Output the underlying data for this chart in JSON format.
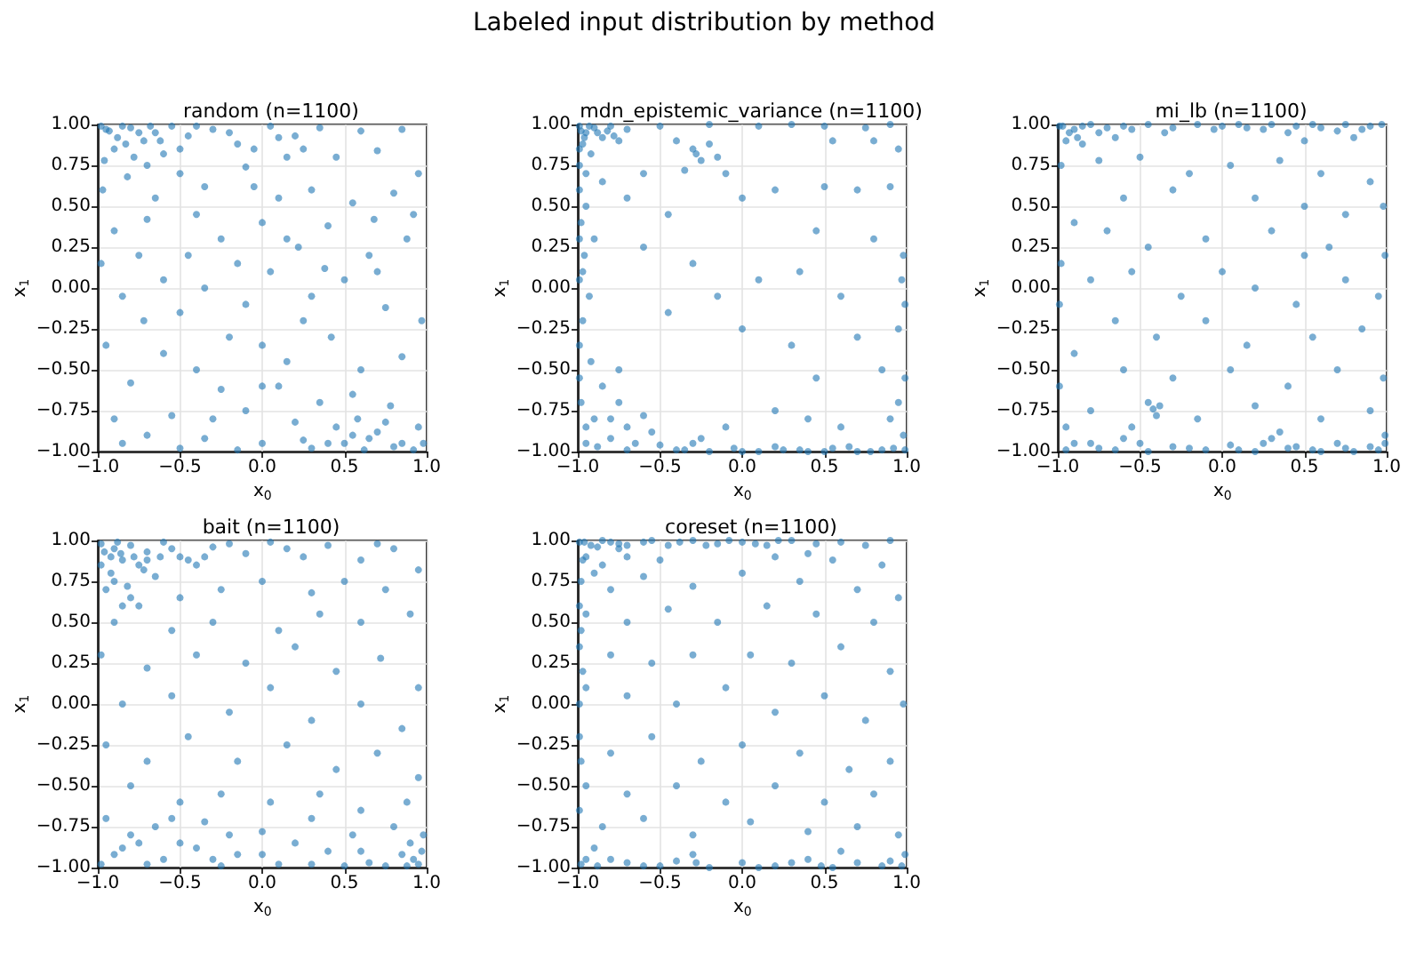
{
  "chart_data": [
    {
      "type": "other",
      "title": "Labeled input distribution by method"
    },
    {
      "type": "scatter",
      "title": "random (n=1100)",
      "xlabel": "x$_{0}$",
      "ylabel": "x$_{1}$",
      "color": "#1f77b4",
      "marker": "circle",
      "grid": true,
      "xlim": [
        -1,
        1
      ],
      "ylim": [
        -1,
        1
      ],
      "xticks": [
        {
          "value": -1,
          "label": "−1.0"
        },
        {
          "value": -0.5,
          "label": "−0.5"
        },
        {
          "value": 0,
          "label": "0.0"
        },
        {
          "value": 0.5,
          "label": "0.5"
        },
        {
          "value": 1,
          "label": "1.0"
        }
      ],
      "yticks": [
        {
          "value": -1,
          "label": "−1.00"
        },
        {
          "value": -0.75,
          "label": "−0.75"
        },
        {
          "value": -0.5,
          "label": "−0.50"
        },
        {
          "value": -0.25,
          "label": "−0.25"
        },
        {
          "value": 0,
          "label": "0.00"
        },
        {
          "value": 0.25,
          "label": "0.25"
        },
        {
          "value": 0.5,
          "label": "0.50"
        },
        {
          "value": 0.75,
          "label": "0.75"
        },
        {
          "value": 1,
          "label": "1.00"
        }
      ],
      "x": [
        -0.95,
        -0.88,
        -0.8,
        -0.72,
        -0.65,
        -0.9,
        -0.78,
        -0.6,
        -0.55,
        -0.45,
        -0.3,
        -0.15,
        0.05,
        0.2,
        0.35,
        0.6,
        0.85,
        0.45,
        0.7,
        0.95,
        -0.97,
        -0.82,
        -0.5,
        -0.35,
        -0.1,
        0.1,
        0.3,
        0.55,
        0.8,
        0.92,
        -0.9,
        -0.7,
        -0.45,
        -0.25,
        0.0,
        0.22,
        0.4,
        0.65,
        0.88,
        -0.6,
        -0.85,
        -0.35,
        -0.1,
        0.05,
        0.3,
        0.5,
        0.75,
        0.97,
        -0.72,
        -0.2,
        -0.95,
        -0.6,
        -0.4,
        0.0,
        0.15,
        0.42,
        0.6,
        0.85,
        -0.8,
        -0.25,
        0.1,
        0.35,
        0.55,
        0.78,
        -0.9,
        -0.55,
        -0.1,
        0.2,
        0.45,
        0.7,
        0.95,
        -0.7,
        -0.35,
        0.0,
        0.3,
        0.5,
        0.62,
        0.8,
        0.92,
        -0.15,
        -0.98,
        -0.5,
        0.15,
        -0.05,
        0.68,
        0.38,
        -0.4,
        0.58,
        0.25,
        -0.65,
        -0.98,
        -0.93,
        -0.85,
        -0.75,
        -0.68,
        -0.62,
        -0.83,
        -0.96,
        -0.7,
        -0.4,
        -0.5,
        -0.2,
        0.25,
        0.1,
        -0.05,
        0.65,
        0.75,
        0.85,
        0.98,
        0.4,
        0.55,
        0.25,
        -0.5,
        -0.85,
        -0.3,
        0.0,
        -0.75,
        0.15,
        0.7,
        -0.15
      ],
      "values": [
        0.97,
        0.92,
        0.98,
        0.9,
        0.95,
        0.85,
        0.8,
        0.82,
        0.99,
        0.93,
        0.97,
        0.88,
        0.99,
        0.93,
        0.98,
        0.96,
        0.97,
        0.8,
        0.84,
        0.7,
        0.6,
        0.68,
        0.7,
        0.62,
        0.74,
        0.55,
        0.6,
        0.52,
        0.58,
        0.45,
        0.35,
        0.42,
        0.2,
        0.3,
        0.4,
        0.25,
        0.38,
        0.2,
        0.3,
        0.05,
        -0.05,
        0.0,
        -0.1,
        0.1,
        -0.05,
        0.05,
        -0.12,
        -0.2,
        -0.2,
        -0.3,
        -0.35,
        -0.4,
        -0.5,
        -0.35,
        -0.45,
        -0.3,
        -0.5,
        -0.42,
        -0.58,
        -0.62,
        -0.6,
        -0.7,
        -0.65,
        -0.72,
        -0.8,
        -0.78,
        -0.75,
        -0.82,
        -0.85,
        -0.88,
        -0.85,
        -0.9,
        -0.92,
        -0.95,
        -0.98,
        -0.95,
        -0.99,
        -0.97,
        -0.99,
        -0.99,
        0.15,
        -0.15,
        0.8,
        0.62,
        0.42,
        0.12,
        0.45,
        -0.8,
        -0.2,
        0.55,
        0.99,
        0.96,
        0.99,
        0.95,
        0.99,
        0.9,
        0.88,
        0.78,
        0.75,
        0.99,
        0.85,
        0.95,
        0.85,
        0.92,
        0.85,
        -0.92,
        -0.82,
        -0.95,
        -0.95,
        -0.95,
        -0.9,
        -0.93,
        -0.98,
        -0.95,
        -0.8,
        -0.6,
        0.2,
        0.3,
        0.1,
        0.15
      ]
    },
    {
      "type": "scatter",
      "title": "mdn_epistemic_variance (n=1100)",
      "xlabel": "x$_{0}$",
      "ylabel": "x$_{1}$",
      "color": "#1f77b4",
      "marker": "circle",
      "grid": true,
      "xlim": [
        -1,
        1
      ],
      "ylim": [
        -1,
        1
      ],
      "xticks": [
        {
          "value": -1,
          "label": "−1.0"
        },
        {
          "value": -0.5,
          "label": "−0.5"
        },
        {
          "value": 0,
          "label": "0.0"
        },
        {
          "value": 0.5,
          "label": "0.5"
        },
        {
          "value": 1,
          "label": "1.0"
        }
      ],
      "yticks": [
        {
          "value": -1,
          "label": "−1.00"
        },
        {
          "value": -0.75,
          "label": "−0.75"
        },
        {
          "value": -0.5,
          "label": "−0.50"
        },
        {
          "value": -0.25,
          "label": "−0.25"
        },
        {
          "value": 0,
          "label": "0.00"
        },
        {
          "value": 0.25,
          "label": "0.25"
        },
        {
          "value": 0.5,
          "label": "0.50"
        },
        {
          "value": 0.75,
          "label": "0.75"
        },
        {
          "value": 1,
          "label": "1.00"
        }
      ],
      "x": [
        -0.99,
        -0.95,
        -0.9,
        -0.85,
        -0.97,
        -0.8,
        -0.75,
        -0.92,
        -0.99,
        -0.7,
        -0.99,
        -0.95,
        -0.98,
        -0.9,
        -0.96,
        -0.99,
        -0.93,
        -0.97,
        -0.99,
        -0.92,
        -0.3,
        -0.25,
        -0.2,
        -0.35,
        -0.15,
        -0.4,
        -0.1,
        -0.85,
        -0.7,
        -0.6,
        -0.5,
        -0.2,
        0.1,
        0.3,
        0.5,
        0.75,
        0.9,
        0.55,
        0.8,
        0.95,
        0.5,
        0.7,
        0.9,
        0.2,
        0.0,
        -0.45,
        0.45,
        0.8,
        0.98,
        -0.6,
        -0.3,
        0.1,
        0.35,
        0.6,
        -0.15,
        -0.45,
        0.0,
        0.3,
        0.7,
        0.95,
        -0.85,
        -0.75,
        -0.9,
        -0.7,
        -0.8,
        -0.6,
        -0.65,
        -0.95,
        -0.55,
        -0.75,
        -0.4,
        -0.3,
        -0.2,
        -0.05,
        0.1,
        0.25,
        0.4,
        0.55,
        0.7,
        0.85,
        0.98,
        0.95,
        0.99,
        0.9,
        0.6,
        0.4,
        0.2,
        -0.1,
        0.45,
        0.85,
        -0.98,
        -0.93,
        -0.88,
        -0.96,
        -0.82,
        -0.78,
        -0.99,
        -0.95,
        -0.99,
        -0.97,
        -0.99,
        -0.98,
        -0.95,
        -0.88,
        -0.8,
        -0.7,
        -0.5,
        -0.35,
        -0.25,
        0.0,
        0.2,
        0.35,
        0.5,
        0.65,
        0.78,
        0.92,
        0.99,
        0.97,
        0.99,
        -0.28
      ],
      "values": [
        0.99,
        0.95,
        0.98,
        0.92,
        0.88,
        0.99,
        0.9,
        0.82,
        0.75,
        0.97,
        0.6,
        0.5,
        0.4,
        0.3,
        0.2,
        0.05,
        -0.05,
        -0.2,
        -0.35,
        -0.45,
        0.85,
        0.78,
        0.88,
        0.72,
        0.8,
        0.9,
        0.7,
        0.65,
        0.55,
        0.7,
        0.99,
        1.0,
        0.99,
        1.0,
        0.99,
        0.98,
        1.0,
        0.9,
        0.9,
        0.85,
        0.62,
        0.6,
        0.62,
        0.6,
        0.55,
        0.45,
        0.35,
        0.3,
        0.2,
        0.25,
        0.15,
        0.05,
        0.1,
        -0.05,
        -0.05,
        -0.15,
        -0.25,
        -0.35,
        -0.3,
        -0.25,
        -0.6,
        -0.7,
        -0.8,
        -0.85,
        -0.92,
        -0.78,
        -0.95,
        -0.95,
        -0.88,
        -0.5,
        -0.99,
        -0.95,
        -1.0,
        -0.98,
        -1.0,
        -0.99,
        -1.0,
        -0.98,
        -1.0,
        -0.99,
        -0.9,
        -0.7,
        -0.55,
        -0.8,
        -0.85,
        -0.8,
        -0.75,
        -0.85,
        -0.55,
        -0.5,
        0.96,
        0.99,
        0.95,
        0.92,
        0.96,
        0.93,
        0.85,
        0.7,
        0.3,
        0.1,
        -0.55,
        -0.7,
        -0.85,
        -0.97,
        -0.8,
        -0.99,
        -0.96,
        -0.99,
        -0.92,
        -1.0,
        -0.97,
        -0.99,
        -1.0,
        -0.97,
        -1.0,
        -0.98,
        -0.99,
        0.05,
        -0.1,
        0.82
      ]
    },
    {
      "type": "scatter",
      "title": "mi_lb (n=1100)",
      "xlabel": "x$_{0}$",
      "ylabel": "x$_{1}$",
      "color": "#1f77b4",
      "marker": "circle",
      "grid": true,
      "xlim": [
        -1,
        1
      ],
      "ylim": [
        -1,
        1
      ],
      "xticks": [
        {
          "value": -1,
          "label": "−1.0"
        },
        {
          "value": -0.5,
          "label": "−0.5"
        },
        {
          "value": 0,
          "label": "0.0"
        },
        {
          "value": 0.5,
          "label": "0.5"
        },
        {
          "value": 1,
          "label": "1.0"
        }
      ],
      "yticks": [
        {
          "value": -1,
          "label": "−1.00"
        },
        {
          "value": -0.75,
          "label": "−0.75"
        },
        {
          "value": -0.5,
          "label": "−0.50"
        },
        {
          "value": -0.25,
          "label": "−0.25"
        },
        {
          "value": 0,
          "label": "0.00"
        },
        {
          "value": 0.25,
          "label": "0.25"
        },
        {
          "value": 0.5,
          "label": "0.50"
        },
        {
          "value": 0.75,
          "label": "0.75"
        },
        {
          "value": 1,
          "label": "1.00"
        }
      ],
      "x": [
        -0.99,
        -0.9,
        -0.8,
        -0.7,
        -0.6,
        -0.45,
        -0.3,
        -0.15,
        0.0,
        0.15,
        0.3,
        0.45,
        0.6,
        0.75,
        0.9,
        -0.95,
        -0.85,
        -0.65,
        0.5,
        0.8,
        -0.98,
        -0.75,
        -0.5,
        -0.2,
        0.05,
        0.35,
        0.6,
        0.9,
        -0.6,
        -0.3,
        0.2,
        0.5,
        0.75,
        0.98,
        -0.9,
        -0.7,
        -0.45,
        -0.1,
        0.3,
        0.65,
        -0.98,
        -0.8,
        -0.55,
        -0.25,
        0.0,
        0.2,
        0.45,
        0.75,
        0.95,
        -0.65,
        -0.4,
        -0.1,
        0.15,
        0.55,
        0.85,
        -0.9,
        -0.6,
        -0.3,
        0.05,
        0.4,
        0.7,
        0.98,
        -0.45,
        -0.4,
        -0.8,
        -0.15,
        0.2,
        0.6,
        0.9,
        -0.95,
        -0.9,
        -0.75,
        -0.6,
        -0.45,
        -0.3,
        -0.1,
        0.05,
        0.2,
        0.3,
        0.4,
        0.55,
        0.7,
        0.8,
        0.9,
        0.99,
        -0.99,
        0.99,
        -0.99,
        0.35,
        -0.55,
        -0.97,
        -0.93,
        -0.85,
        -0.75,
        -0.88,
        -0.55,
        -0.35,
        -0.05,
        0.1,
        0.25,
        0.4,
        0.55,
        0.7,
        0.85,
        0.97,
        -0.95,
        -0.8,
        -0.65,
        -0.5,
        -0.2,
        0.1,
        0.25,
        0.45,
        0.6,
        0.75,
        0.95,
        0.99,
        -0.42,
        -0.38,
        0.5
      ],
      "values": [
        0.99,
        0.97,
        1.0,
        0.98,
        0.99,
        1.0,
        0.98,
        1.0,
        0.99,
        0.98,
        1.0,
        0.99,
        0.98,
        1.0,
        0.99,
        0.9,
        0.88,
        0.92,
        0.9,
        0.92,
        0.75,
        0.78,
        0.8,
        0.7,
        0.75,
        0.78,
        0.7,
        0.65,
        0.55,
        0.6,
        0.55,
        0.5,
        0.45,
        0.5,
        0.4,
        0.35,
        0.25,
        0.3,
        0.35,
        0.25,
        0.15,
        0.05,
        0.1,
        -0.05,
        0.1,
        0.0,
        -0.1,
        0.05,
        -0.05,
        -0.2,
        -0.3,
        -0.2,
        -0.35,
        -0.3,
        -0.25,
        -0.4,
        -0.5,
        -0.55,
        -0.5,
        -0.6,
        -0.5,
        -0.55,
        -0.7,
        -0.78,
        -0.75,
        -0.8,
        -0.72,
        -0.8,
        -0.75,
        -0.85,
        -0.95,
        -0.98,
        -0.92,
        -1.0,
        -0.97,
        -0.99,
        -0.96,
        -1.0,
        -0.92,
        -0.98,
        -0.99,
        -0.95,
        -1.0,
        -0.97,
        -0.9,
        -0.6,
        0.2,
        -0.1,
        -0.88,
        -0.85,
        0.99,
        0.95,
        0.99,
        0.95,
        0.92,
        0.97,
        0.95,
        0.97,
        1.0,
        0.97,
        0.95,
        1.0,
        0.96,
        0.97,
        1.0,
        -0.99,
        -0.95,
        -0.99,
        -0.95,
        -0.98,
        -0.99,
        -0.95,
        -0.97,
        -1.0,
        -0.98,
        -0.99,
        -0.95,
        -0.74,
        -0.72,
        0.2
      ]
    },
    {
      "type": "scatter",
      "title": "bait (n=1100)",
      "xlabel": "x$_{0}$",
      "ylabel": "x$_{1}$",
      "color": "#1f77b4",
      "marker": "circle",
      "grid": true,
      "xlim": [
        -1,
        1
      ],
      "ylim": [
        -1,
        1
      ],
      "xticks": [
        {
          "value": -1,
          "label": "−1.0"
        },
        {
          "value": -0.5,
          "label": "−0.5"
        },
        {
          "value": 0,
          "label": "0.0"
        },
        {
          "value": 0.5,
          "label": "0.5"
        },
        {
          "value": 1,
          "label": "1.0"
        }
      ],
      "yticks": [
        {
          "value": -1,
          "label": "−1.00"
        },
        {
          "value": -0.75,
          "label": "−0.75"
        },
        {
          "value": -0.5,
          "label": "−0.50"
        },
        {
          "value": -0.25,
          "label": "−0.25"
        },
        {
          "value": 0,
          "label": "0.00"
        },
        {
          "value": 0.25,
          "label": "0.25"
        },
        {
          "value": 0.5,
          "label": "0.50"
        },
        {
          "value": 0.75,
          "label": "0.75"
        },
        {
          "value": 1,
          "label": "1.00"
        }
      ],
      "x": [
        -0.98,
        -0.9,
        -0.85,
        -0.8,
        -0.92,
        -0.75,
        -0.7,
        -0.95,
        -0.82,
        -0.65,
        -0.6,
        -0.5,
        -0.4,
        -0.3,
        -0.1,
        0.05,
        0.25,
        0.4,
        0.6,
        0.8,
        0.95,
        -0.75,
        -0.5,
        -0.25,
        0.0,
        0.3,
        0.5,
        0.75,
        -0.9,
        -0.55,
        -0.3,
        0.1,
        0.35,
        0.6,
        0.9,
        -0.98,
        -0.7,
        -0.4,
        -0.1,
        0.2,
        0.45,
        0.72,
        0.95,
        -0.85,
        -0.55,
        -0.2,
        0.05,
        0.3,
        0.6,
        0.85,
        -0.95,
        -0.7,
        -0.45,
        -0.15,
        0.15,
        0.45,
        0.7,
        0.95,
        -0.8,
        -0.5,
        -0.25,
        0.05,
        0.35,
        0.6,
        0.88,
        -0.95,
        -0.65,
        -0.35,
        0.0,
        0.3,
        0.55,
        0.8,
        -0.85,
        -0.6,
        -0.4,
        -0.15,
        0.1,
        0.4,
        0.65,
        0.85,
        0.95,
        0.9,
        -0.98,
        0.2,
        -0.7,
        0.5,
        -0.25,
        0.75,
        -0.5,
        0.98,
        -0.96,
        -0.88,
        -0.86,
        -0.78,
        -0.72,
        -0.9,
        -0.8,
        -0.7,
        -0.62,
        -0.55,
        -0.45,
        -0.35,
        -0.98,
        -0.85,
        -0.92,
        -0.2,
        0.15,
        0.7,
        -0.9,
        -0.8,
        -0.55,
        -0.3,
        0.0,
        0.3,
        0.6,
        0.92,
        0.88,
        0.97,
        -0.75,
        -0.2
      ],
      "values": [
        0.98,
        0.95,
        0.88,
        0.97,
        0.8,
        0.85,
        0.93,
        0.7,
        0.72,
        0.78,
        0.99,
        0.9,
        0.85,
        0.96,
        0.92,
        0.99,
        0.9,
        0.97,
        0.88,
        0.95,
        0.82,
        0.6,
        0.65,
        0.7,
        0.75,
        0.68,
        0.75,
        0.7,
        0.5,
        0.45,
        0.5,
        0.45,
        0.55,
        0.5,
        0.55,
        0.3,
        0.22,
        0.3,
        0.25,
        0.35,
        0.2,
        0.28,
        0.1,
        0.0,
        0.05,
        -0.05,
        0.1,
        -0.1,
        0.0,
        -0.15,
        -0.25,
        -0.35,
        -0.2,
        -0.35,
        -0.25,
        -0.4,
        -0.3,
        -0.45,
        -0.5,
        -0.6,
        -0.55,
        -0.6,
        -0.55,
        -0.65,
        -0.6,
        -0.7,
        -0.75,
        -0.72,
        -0.78,
        -0.7,
        -0.8,
        -0.75,
        -0.88,
        -0.95,
        -0.88,
        -0.92,
        -0.98,
        -0.9,
        -0.97,
        -0.92,
        -0.98,
        -0.85,
        -0.98,
        -0.85,
        -0.98,
        -0.99,
        -0.99,
        -0.99,
        -0.85,
        -0.8,
        0.93,
        0.99,
        0.92,
        0.9,
        0.82,
        0.75,
        0.65,
        0.88,
        0.9,
        0.95,
        0.88,
        0.9,
        0.85,
        0.6,
        0.9,
        0.98,
        0.95,
        0.98,
        -0.92,
        -0.8,
        -0.7,
        -0.95,
        -0.92,
        -0.98,
        -0.9,
        -0.95,
        -0.99,
        -0.9,
        -0.85,
        -0.8
      ]
    },
    {
      "type": "scatter",
      "title": "coreset (n=1100)",
      "xlabel": "x$_{0}$",
      "ylabel": "x$_{1}$",
      "color": "#1f77b4",
      "marker": "circle",
      "grid": true,
      "xlim": [
        -1,
        1
      ],
      "ylim": [
        -1,
        1
      ],
      "xticks": [
        {
          "value": -1,
          "label": "−1.0"
        },
        {
          "value": -0.5,
          "label": "−0.5"
        },
        {
          "value": 0,
          "label": "0.0"
        },
        {
          "value": 0.5,
          "label": "0.5"
        },
        {
          "value": 1,
          "label": "1.0"
        }
      ],
      "yticks": [
        {
          "value": -1,
          "label": "−1.00"
        },
        {
          "value": -0.75,
          "label": "−0.75"
        },
        {
          "value": -0.5,
          "label": "−0.50"
        },
        {
          "value": -0.25,
          "label": "−0.25"
        },
        {
          "value": 0,
          "label": "0.00"
        },
        {
          "value": 0.25,
          "label": "0.25"
        },
        {
          "value": 0.5,
          "label": "0.50"
        },
        {
          "value": 0.75,
          "label": "0.75"
        },
        {
          "value": 1,
          "label": "1.00"
        }
      ],
      "x": [
        -0.99,
        -0.92,
        -0.85,
        -0.75,
        -0.6,
        -0.45,
        -0.3,
        -0.15,
        0.0,
        0.15,
        0.3,
        0.45,
        0.6,
        0.75,
        0.9,
        -0.95,
        -0.85,
        -0.7,
        -0.5,
        0.2,
        0.55,
        0.85,
        -0.98,
        -0.8,
        -0.6,
        -0.3,
        0.0,
        0.35,
        0.7,
        0.95,
        -0.95,
        -0.7,
        -0.45,
        -0.15,
        0.15,
        0.45,
        0.8,
        -0.99,
        -0.8,
        -0.55,
        -0.3,
        0.05,
        0.3,
        0.6,
        0.9,
        -0.95,
        -0.7,
        -0.4,
        -0.1,
        0.2,
        0.5,
        0.75,
        0.98,
        -0.99,
        -0.8,
        -0.55,
        -0.25,
        0.0,
        0.35,
        0.65,
        0.9,
        -0.95,
        -0.7,
        -0.4,
        -0.1,
        0.2,
        0.5,
        0.8,
        -0.85,
        -0.6,
        -0.3,
        0.05,
        0.4,
        0.7,
        0.95,
        -0.98,
        -0.8,
        -0.6,
        -0.4,
        -0.2,
        0.0,
        0.2,
        0.4,
        0.55,
        0.7,
        0.85,
        0.99,
        -0.3,
        0.6,
        -0.9,
        -0.96,
        -0.88,
        -0.8,
        -0.7,
        -0.55,
        -0.38,
        -0.22,
        -0.08,
        0.08,
        0.22,
        -0.97,
        -0.9,
        -0.99,
        -0.98,
        -0.97,
        -0.99,
        -0.98,
        -0.99,
        -0.95,
        -0.88,
        -0.7,
        -0.5,
        -0.28,
        0.1,
        0.3,
        0.48,
        0.9,
        0.97,
        -0.75,
        0.4
      ],
      "values": [
        0.99,
        0.97,
        1.0,
        0.98,
        0.99,
        0.97,
        1.0,
        0.98,
        0.99,
        0.97,
        1.0,
        0.98,
        0.99,
        0.97,
        1.0,
        0.9,
        0.85,
        0.9,
        0.88,
        0.9,
        0.88,
        0.85,
        0.75,
        0.7,
        0.78,
        0.72,
        0.8,
        0.75,
        0.7,
        0.65,
        0.55,
        0.5,
        0.58,
        0.5,
        0.6,
        0.55,
        0.5,
        0.35,
        0.3,
        0.25,
        0.3,
        0.3,
        0.25,
        0.35,
        0.2,
        0.1,
        0.05,
        0.0,
        0.1,
        -0.05,
        0.05,
        -0.1,
        0.0,
        -0.2,
        -0.3,
        -0.2,
        -0.35,
        -0.25,
        -0.3,
        -0.4,
        -0.35,
        -0.5,
        -0.55,
        -0.5,
        -0.6,
        -0.5,
        -0.6,
        -0.55,
        -0.75,
        -0.7,
        -0.8,
        -0.72,
        -0.78,
        -0.75,
        -0.8,
        -0.98,
        -0.95,
        -0.99,
        -0.96,
        -1.0,
        -0.97,
        -0.99,
        -0.95,
        -1.0,
        -0.97,
        -0.99,
        -0.92,
        -0.92,
        -0.9,
        -0.88,
        0.99,
        0.96,
        0.99,
        0.97,
        1.0,
        0.99,
        0.97,
        1.0,
        0.98,
        1.0,
        0.88,
        0.8,
        0.6,
        0.45,
        0.2,
        0.0,
        -0.35,
        -0.65,
        -0.95,
        -0.99,
        -0.97,
        -0.99,
        -0.97,
        -1.0,
        -0.97,
        -0.99,
        -0.96,
        -0.99,
        0.95,
        0.92
      ]
    }
  ]
}
